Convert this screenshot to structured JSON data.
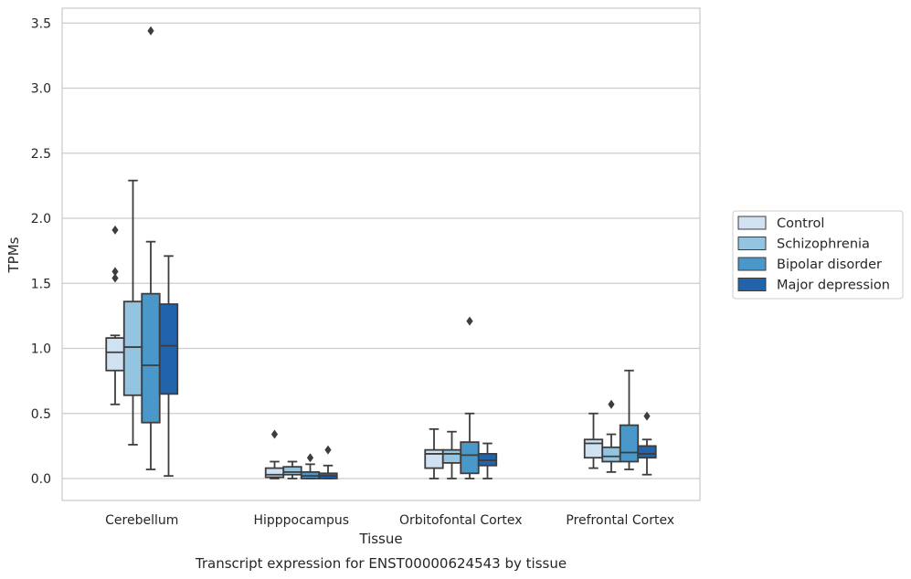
{
  "chart_data": {
    "type": "boxplot",
    "xlabel": "Tissue",
    "ylabel": "TPMs",
    "caption": "Transcript expression for ENST00000624543 by tissue",
    "ylim": [
      -0.17,
      3.6
    ],
    "yticks": [
      "0.0",
      "0.5",
      "1.0",
      "1.5",
      "2.0",
      "2.5",
      "3.0",
      "3.5"
    ],
    "grid": true,
    "legend_position": "right",
    "categories": [
      "Cerebellum",
      "Hipppocampus",
      "Orbitofontal Cortex",
      "Prefrontal Cortex"
    ],
    "series": [
      {
        "name": "Control",
        "color": "#d0e1f2",
        "boxes": [
          {
            "whislo": 0.57,
            "q1": 0.83,
            "med": 0.97,
            "q3": 1.08,
            "whishi": 1.1,
            "fliers": [
              1.91,
              1.59,
              1.54
            ]
          },
          {
            "whislo": 0.0,
            "q1": 0.01,
            "med": 0.03,
            "q3": 0.08,
            "whishi": 0.13,
            "fliers": [
              0.34
            ]
          },
          {
            "whislo": 0.0,
            "q1": 0.08,
            "med": 0.19,
            "q3": 0.22,
            "whishi": 0.38,
            "fliers": []
          },
          {
            "whislo": 0.08,
            "q1": 0.16,
            "med": 0.27,
            "q3": 0.3,
            "whishi": 0.5,
            "fliers": []
          }
        ]
      },
      {
        "name": "Schizophrenia",
        "color": "#94c4df",
        "boxes": [
          {
            "whislo": 0.26,
            "q1": 0.64,
            "med": 1.01,
            "q3": 1.36,
            "whishi": 2.29,
            "fliers": []
          },
          {
            "whislo": 0.0,
            "q1": 0.03,
            "med": 0.05,
            "q3": 0.09,
            "whishi": 0.13,
            "fliers": []
          },
          {
            "whislo": 0.0,
            "q1": 0.12,
            "med": 0.19,
            "q3": 0.22,
            "whishi": 0.36,
            "fliers": []
          },
          {
            "whislo": 0.05,
            "q1": 0.13,
            "med": 0.17,
            "q3": 0.24,
            "whishi": 0.34,
            "fliers": [
              0.57
            ]
          }
        ]
      },
      {
        "name": "Bipolar disorder",
        "color": "#4a98c9",
        "boxes": [
          {
            "whislo": 0.07,
            "q1": 0.43,
            "med": 0.87,
            "q3": 1.42,
            "whishi": 1.82,
            "fliers": [
              3.44
            ]
          },
          {
            "whislo": 0.0,
            "q1": 0.0,
            "med": 0.02,
            "q3": 0.05,
            "whishi": 0.11,
            "fliers": [
              0.16
            ]
          },
          {
            "whislo": 0.0,
            "q1": 0.04,
            "med": 0.18,
            "q3": 0.28,
            "whishi": 0.5,
            "fliers": [
              1.21
            ]
          },
          {
            "whislo": 0.07,
            "q1": 0.13,
            "med": 0.2,
            "q3": 0.41,
            "whishi": 0.83,
            "fliers": []
          }
        ]
      },
      {
        "name": "Major depression",
        "color": "#2264ab",
        "boxes": [
          {
            "whislo": 0.02,
            "q1": 0.65,
            "med": 1.02,
            "q3": 1.34,
            "whishi": 1.71,
            "fliers": []
          },
          {
            "whislo": 0.0,
            "q1": 0.0,
            "med": 0.02,
            "q3": 0.04,
            "whishi": 0.1,
            "fliers": [
              0.22
            ]
          },
          {
            "whislo": 0.0,
            "q1": 0.1,
            "med": 0.14,
            "q3": 0.19,
            "whishi": 0.27,
            "fliers": []
          },
          {
            "whislo": 0.03,
            "q1": 0.16,
            "med": 0.19,
            "q3": 0.25,
            "whishi": 0.3,
            "fliers": [
              0.48
            ]
          }
        ]
      }
    ]
  }
}
